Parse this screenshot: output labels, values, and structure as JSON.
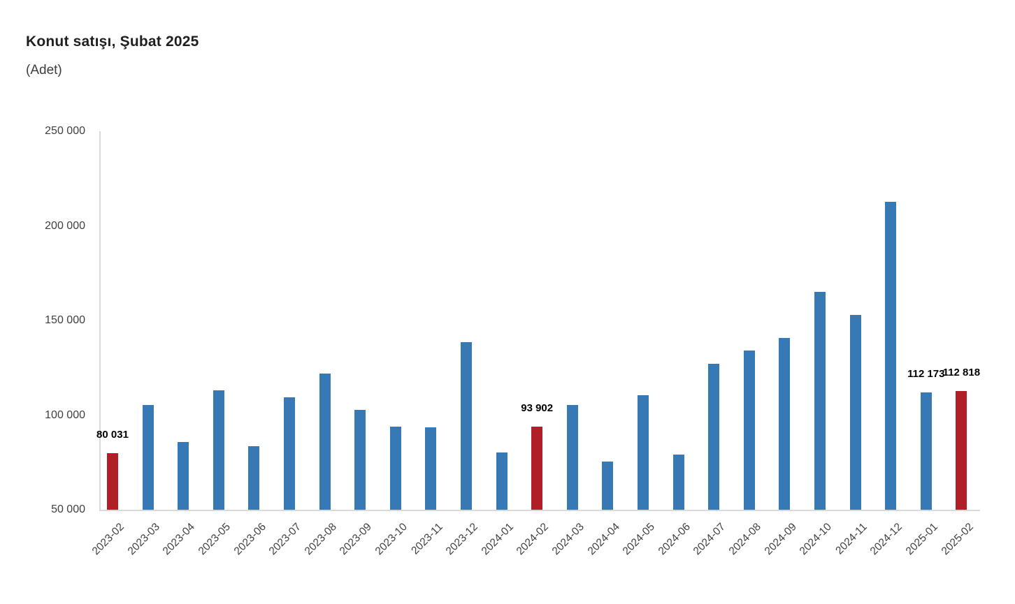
{
  "title": "Konut satışı, Şubat 2025",
  "subtitle": "(Adet)",
  "chart_data": {
    "type": "bar",
    "title": "Konut satışı, Şubat 2025",
    "ylabel": "Adet",
    "xlabel": "",
    "categories": [
      "2023-02",
      "2023-03",
      "2023-04",
      "2023-05",
      "2023-06",
      "2023-07",
      "2023-08",
      "2023-09",
      "2023-10",
      "2023-11",
      "2023-12",
      "2024-01",
      "2024-02",
      "2024-03",
      "2024-04",
      "2024-05",
      "2024-06",
      "2024-07",
      "2024-08",
      "2024-09",
      "2024-10",
      "2024-11",
      "2024-12",
      "2025-01",
      "2025-02"
    ],
    "values": [
      80031,
      105476,
      85652,
      113099,
      83636,
      109548,
      122091,
      102656,
      93761,
      93514,
      138577,
      80308,
      93902,
      105394,
      75569,
      110588,
      79313,
      127088,
      134155,
      140919,
      165138,
      153014,
      212637,
      112173,
      112818
    ],
    "highlight_indices": [
      0,
      12,
      24
    ],
    "data_label_indices": [
      0,
      12,
      23,
      24
    ],
    "data_labels": [
      "80 031",
      "93 902",
      "112 173",
      "112 818"
    ],
    "ylim": [
      50000,
      250000
    ],
    "yticks": [
      50000,
      100000,
      150000,
      200000,
      250000
    ],
    "ytick_labels": [
      "50 000",
      "100 000",
      "150 000",
      "200 000",
      "250 000"
    ],
    "grid": false,
    "legend": false,
    "colors": {
      "bar_default": "#3779B5",
      "bar_highlight": "#B11F26",
      "axis_line": "#D9D9D9",
      "tick_text": "#3F3F3F",
      "data_label_text": "#000000"
    }
  }
}
